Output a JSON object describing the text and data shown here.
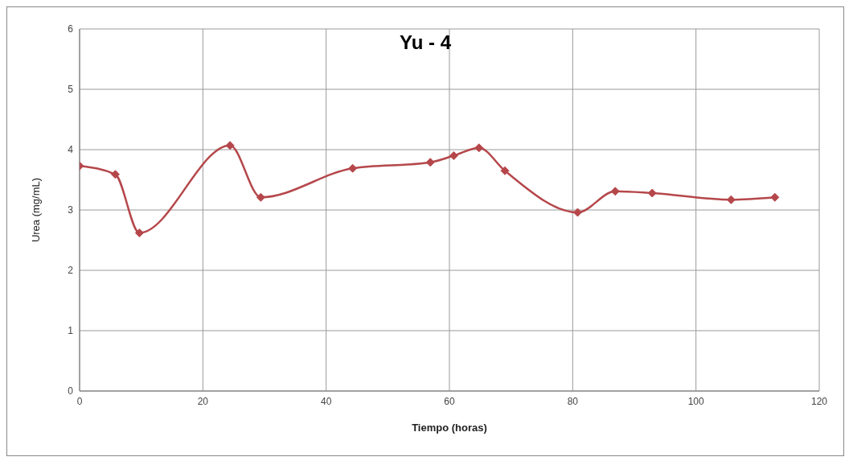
{
  "chart_data": {
    "type": "line",
    "title": "Yu - 4",
    "xlabel": "Tiempo (horas)",
    "ylabel": "Urea (mg/mL)",
    "x": [
      0,
      5.8,
      9.7,
      24.4,
      29.4,
      44.3,
      56.9,
      60.7,
      64.8,
      69.0,
      80.8,
      86.9,
      92.9,
      105.7,
      112.8
    ],
    "series": [
      {
        "color": "#b5474b",
        "values": [
          3.73,
          3.59,
          2.62,
          4.07,
          3.21,
          3.69,
          3.79,
          3.9,
          4.03,
          3.65,
          2.96,
          3.31,
          3.28,
          3.17,
          3.21
        ]
      }
    ],
    "xlim": [
      0,
      120
    ],
    "xticks": [
      0,
      20,
      40,
      60,
      80,
      100,
      120
    ],
    "ylim": [
      0,
      6
    ],
    "yticks": [
      0,
      1,
      2,
      3,
      4,
      5,
      6
    ],
    "grid": true,
    "legend": false,
    "marker": "diamond",
    "line_style": "solid"
  }
}
